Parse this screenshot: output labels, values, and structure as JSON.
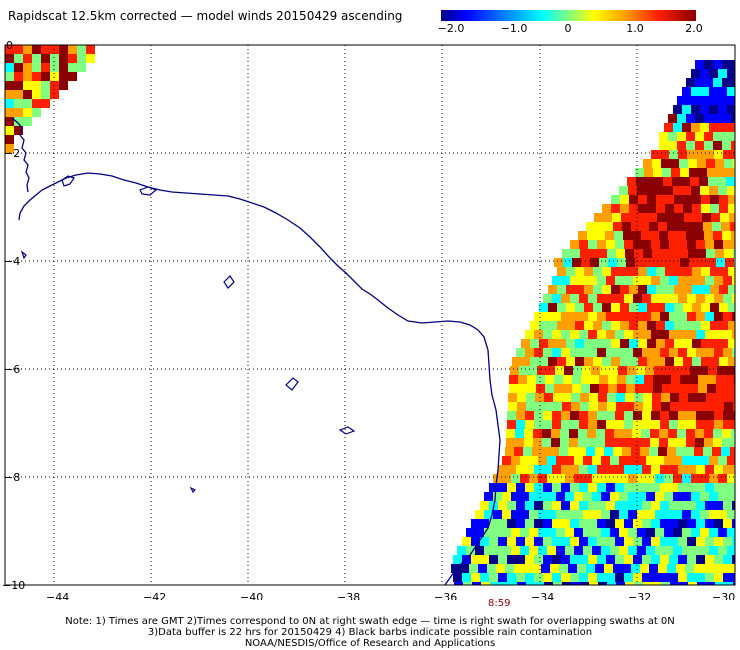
{
  "title": "Rapidscat 12.5km corrected — model winds 20150429 ascending",
  "colorbar": {
    "labels": [
      "−2.0",
      "−1.0",
      "0",
      "1.0",
      "2.0"
    ],
    "colors": [
      "#00008b",
      "#0000ff",
      "#00ffff",
      "#80ff80",
      "#ffff00",
      "#ffa000",
      "#ff2000",
      "#8b0000"
    ]
  },
  "axes": {
    "x_ticks": [
      "−44",
      "−42",
      "−40",
      "−38",
      "−36",
      "−34",
      "−32",
      "−30"
    ],
    "y_ticks": [
      "0",
      "−2",
      "−4",
      "−6",
      "−8",
      "−10"
    ],
    "lon_range": [
      -45,
      -30
    ],
    "lat_range": [
      -10,
      0
    ]
  },
  "time_label": "8:59",
  "notes": [
    "Note: 1) Times are GMT 2)Times correspond to 0N at right swath edge — time is right swath for overlapping swaths at 0N",
    "3)Data buffer is 22 hrs for 20150429 4) Black barbs indicate possible rain contamination",
    "NOAA/NESDIS/Office of Research and Applications"
  ],
  "coastline_color": "#000080"
}
